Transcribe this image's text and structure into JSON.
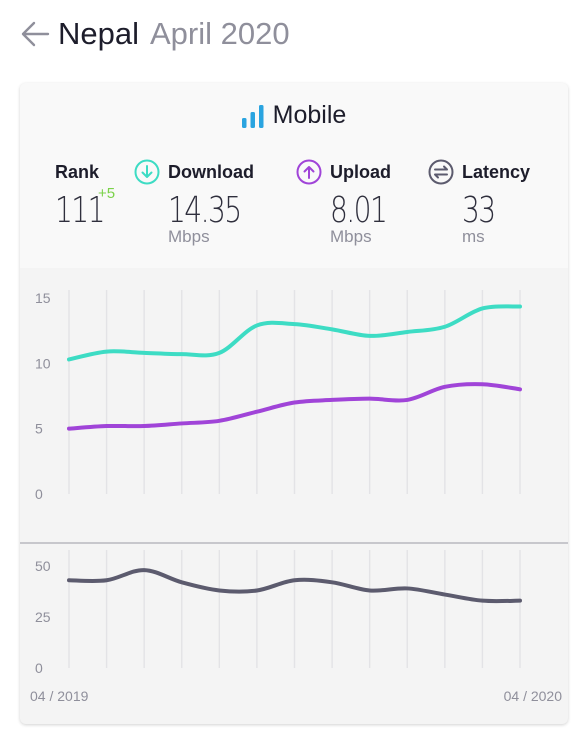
{
  "header": {
    "country": "Nepal",
    "period": "April 2020"
  },
  "card": {
    "title": "Mobile"
  },
  "metrics": {
    "rank": {
      "label": "Rank",
      "value": "111",
      "change": "+5"
    },
    "download": {
      "label": "Download",
      "value": "14.35",
      "unit": "Mbps"
    },
    "upload": {
      "label": "Upload",
      "value": "8.01",
      "unit": "Mbps"
    },
    "latency": {
      "label": "Latency",
      "value": "33",
      "unit": "ms"
    }
  },
  "colors": {
    "download": "#3ddcc4",
    "upload": "#a044d8",
    "latency": "#5c5b6e",
    "rank_change": "#7bd24a",
    "bars": "#2aa4e0"
  },
  "chart_data": [
    {
      "type": "line",
      "x": [
        "04/2019",
        "05/2019",
        "06/2019",
        "07/2019",
        "08/2019",
        "09/2019",
        "10/2019",
        "11/2019",
        "12/2019",
        "01/2020",
        "02/2020",
        "03/2020",
        "04/2020"
      ],
      "x_tick_labels": [
        "04 / 2019",
        "04 / 2020"
      ],
      "ylim": [
        0,
        15
      ],
      "y_ticks": [
        0,
        5,
        10,
        15
      ],
      "grid": "vertical",
      "series": [
        {
          "key": "download",
          "values": [
            10.3,
            10.9,
            10.8,
            10.7,
            10.8,
            12.9,
            13.0,
            12.6,
            12.1,
            12.4,
            12.8,
            14.2,
            14.35
          ]
        },
        {
          "key": "upload",
          "values": [
            5.0,
            5.2,
            5.2,
            5.4,
            5.6,
            6.3,
            7.0,
            7.2,
            7.3,
            7.2,
            8.2,
            8.4,
            8.01
          ]
        }
      ]
    },
    {
      "type": "line",
      "x": [
        "04/2019",
        "05/2019",
        "06/2019",
        "07/2019",
        "08/2019",
        "09/2019",
        "10/2019",
        "11/2019",
        "12/2019",
        "01/2020",
        "02/2020",
        "03/2020",
        "04/2020"
      ],
      "ylim": [
        0,
        50
      ],
      "y_ticks": [
        0,
        25,
        50
      ],
      "grid": "vertical",
      "series": [
        {
          "key": "latency",
          "values": [
            43,
            43,
            48,
            42,
            38,
            38,
            43,
            42,
            38,
            39,
            36,
            33,
            33
          ]
        }
      ]
    }
  ]
}
